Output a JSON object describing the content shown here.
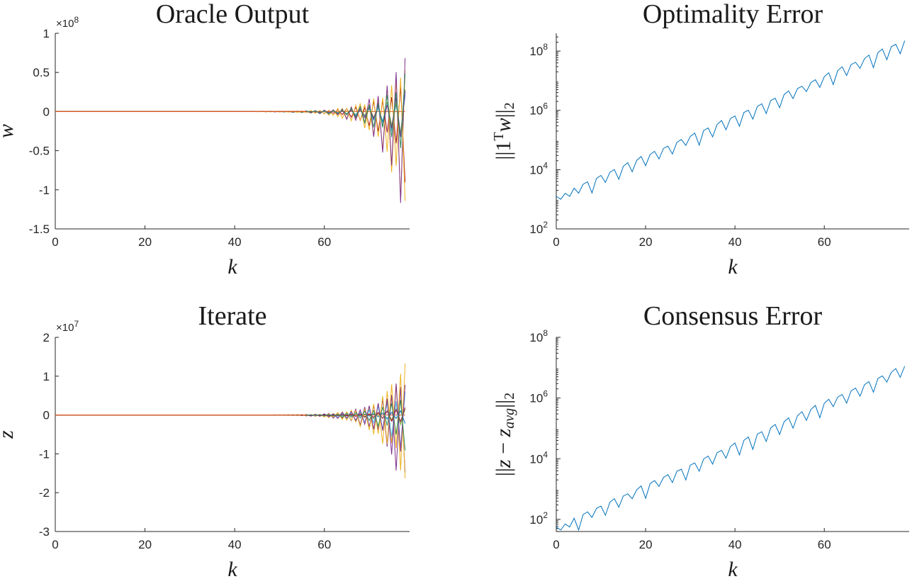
{
  "chart_data": [
    {
      "id": "oracle",
      "type": "line",
      "title": "Oracle Output",
      "xlabel": "k",
      "ylabel_parts": [
        {
          "t": "w",
          "italic": true
        }
      ],
      "xlim": [
        0,
        79
      ],
      "ylim": [
        -1.5,
        1
      ],
      "y_exponent": "×10",
      "y_exponent_power": "8",
      "scale_factor": 100000000,
      "xticks": [
        0,
        20,
        40,
        60
      ],
      "yticks": [
        1,
        0.5,
        0,
        -0.5,
        -1,
        -1.5
      ],
      "ytick_labels": [
        "1",
        "0.5",
        "0",
        "-0.5",
        "-1",
        "-1.5"
      ],
      "log_y": false,
      "series_colors": [
        "#0072BD",
        "#D95319",
        "#EDB120",
        "#7E2F8E",
        "#77AC30",
        "#4DBEEE",
        "#A2142F",
        "#EDB120",
        "#7E2F8E",
        "#2E8B57"
      ],
      "envelope": {
        "start": 40,
        "end": 78,
        "max": 0.82,
        "min": -1.45,
        "growth_per_step": 0.2
      }
    },
    {
      "id": "optimality",
      "type": "line",
      "title": "Optimality Error",
      "xlabel": "k",
      "ylabel_parts": [
        {
          "t": "||1",
          "italic": false
        },
        {
          "t": "T",
          "sup": true
        },
        {
          "t": "w",
          "italic": true
        },
        {
          "t": "||",
          "italic": false
        },
        {
          "t": "2",
          "sub": true
        }
      ],
      "xlim": [
        0,
        79
      ],
      "ylim_exp": [
        2,
        8.6
      ],
      "xticks": [
        0,
        20,
        40,
        60
      ],
      "yticks_exp": [
        2,
        4,
        6,
        8
      ],
      "ytick_base": "10",
      "log_y": true,
      "series_color": "#0072BD",
      "trend": {
        "start_log10": 3.1,
        "end_log10": 8.35,
        "zigzag_log10": 0.45
      }
    },
    {
      "id": "iterate",
      "type": "line",
      "title": "Iterate",
      "xlabel": "k",
      "ylabel_parts": [
        {
          "t": "z",
          "italic": true
        }
      ],
      "xlim": [
        0,
        79
      ],
      "ylim": [
        -3,
        2
      ],
      "y_exponent": "×10",
      "y_exponent_power": "7",
      "scale_factor": 10000000,
      "xticks": [
        0,
        20,
        40,
        60
      ],
      "yticks": [
        2,
        1,
        0,
        -1,
        -2,
        -3
      ],
      "ytick_labels": [
        "2",
        "1",
        "0",
        "-1",
        "-2",
        "-3"
      ],
      "log_y": false,
      "series_colors": [
        "#0072BD",
        "#D95319",
        "#EDB120",
        "#7E2F8E",
        "#77AC30",
        "#4DBEEE",
        "#A2142F",
        "#EDB120",
        "#7E2F8E",
        "#2E8B57"
      ],
      "envelope": {
        "start": 40,
        "end": 78,
        "max": 1.45,
        "min": -2.3,
        "growth_per_step": 0.2
      }
    },
    {
      "id": "consensus",
      "type": "line",
      "title": "Consensus Error",
      "xlabel": "k",
      "ylabel_parts": [
        {
          "t": "||",
          "italic": false
        },
        {
          "t": "z",
          "italic": true
        },
        {
          "t": " − ",
          "italic": false
        },
        {
          "t": "z",
          "italic": true
        },
        {
          "t": "avg",
          "sub": true,
          "italic": true
        },
        {
          "t": "||",
          "italic": false
        },
        {
          "t": "2",
          "sub": true
        }
      ],
      "xlim": [
        0,
        79
      ],
      "ylim_exp": [
        1.6,
        8
      ],
      "xticks": [
        0,
        20,
        40,
        60
      ],
      "yticks_exp": [
        2,
        4,
        6,
        8
      ],
      "ytick_base": "10",
      "log_y": true,
      "series_color": "#0072BD",
      "trend": {
        "start_log10": 1.75,
        "end_log10": 7.05,
        "zigzag_log10": 0.45
      }
    }
  ]
}
